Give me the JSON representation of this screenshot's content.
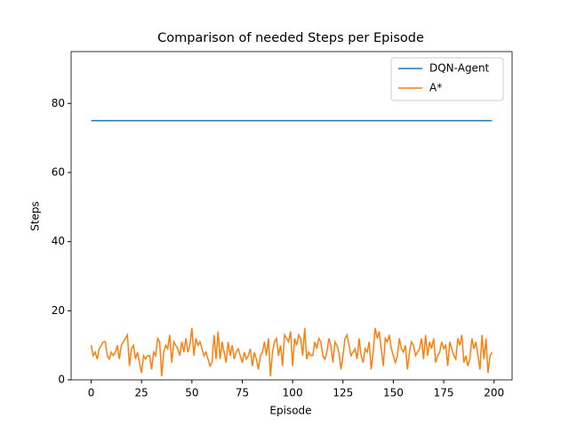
{
  "chart_data": {
    "type": "line",
    "title": "Comparison of needed Steps per Episode",
    "x_label": "Episode",
    "y_label": "Steps",
    "x": [
      0,
      1,
      2,
      3,
      4,
      5,
      6,
      7,
      8,
      9,
      10,
      11,
      12,
      13,
      14,
      15,
      16,
      17,
      18,
      19,
      20,
      21,
      22,
      23,
      24,
      25,
      26,
      27,
      28,
      29,
      30,
      31,
      32,
      33,
      34,
      35,
      36,
      37,
      38,
      39,
      40,
      41,
      42,
      43,
      44,
      45,
      46,
      47,
      48,
      49,
      50,
      51,
      52,
      53,
      54,
      55,
      56,
      57,
      58,
      59,
      60,
      61,
      62,
      63,
      64,
      65,
      66,
      67,
      68,
      69,
      70,
      71,
      72,
      73,
      74,
      75,
      76,
      77,
      78,
      79,
      80,
      81,
      82,
      83,
      84,
      85,
      86,
      87,
      88,
      89,
      90,
      91,
      92,
      93,
      94,
      95,
      96,
      97,
      98,
      99,
      100,
      101,
      102,
      103,
      104,
      105,
      106,
      107,
      108,
      109,
      110,
      111,
      112,
      113,
      114,
      115,
      116,
      117,
      118,
      119,
      120,
      121,
      122,
      123,
      124,
      125,
      126,
      127,
      128,
      129,
      130,
      131,
      132,
      133,
      134,
      135,
      136,
      137,
      138,
      139,
      140,
      141,
      142,
      143,
      144,
      145,
      146,
      147,
      148,
      149,
      150,
      151,
      152,
      153,
      154,
      155,
      156,
      157,
      158,
      159,
      160,
      161,
      162,
      163,
      164,
      165,
      166,
      167,
      168,
      169,
      170,
      171,
      172,
      173,
      174,
      175,
      176,
      177,
      178,
      179,
      180,
      181,
      182,
      183,
      184,
      185,
      186,
      187,
      188,
      189,
      190,
      191,
      192,
      193,
      194,
      195,
      196,
      197,
      198,
      199
    ],
    "series": [
      {
        "name": "DQN-Agent",
        "color": "#1f77b4",
        "values": [
          75,
          75,
          75,
          75,
          75,
          75,
          75,
          75,
          75,
          75,
          75,
          75,
          75,
          75,
          75,
          75,
          75,
          75,
          75,
          75,
          75,
          75,
          75,
          75,
          75,
          75,
          75,
          75,
          75,
          75,
          75,
          75,
          75,
          75,
          75,
          75,
          75,
          75,
          75,
          75,
          75,
          75,
          75,
          75,
          75,
          75,
          75,
          75,
          75,
          75,
          75,
          75,
          75,
          75,
          75,
          75,
          75,
          75,
          75,
          75,
          75,
          75,
          75,
          75,
          75,
          75,
          75,
          75,
          75,
          75,
          75,
          75,
          75,
          75,
          75,
          75,
          75,
          75,
          75,
          75,
          75,
          75,
          75,
          75,
          75,
          75,
          75,
          75,
          75,
          75,
          75,
          75,
          75,
          75,
          75,
          75,
          75,
          75,
          75,
          75,
          75,
          75,
          75,
          75,
          75,
          75,
          75,
          75,
          75,
          75,
          75,
          75,
          75,
          75,
          75,
          75,
          75,
          75,
          75,
          75,
          75,
          75,
          75,
          75,
          75,
          75,
          75,
          75,
          75,
          75,
          75,
          75,
          75,
          75,
          75,
          75,
          75,
          75,
          75,
          75,
          75,
          75,
          75,
          75,
          75,
          75,
          75,
          75,
          75,
          75,
          75,
          75,
          75,
          75,
          75,
          75,
          75,
          75,
          75,
          75,
          75,
          75,
          75,
          75,
          75,
          75,
          75,
          75,
          75,
          75,
          75,
          75,
          75,
          75,
          75,
          75,
          75,
          75,
          75,
          75,
          75,
          75,
          75,
          75,
          75,
          75,
          75,
          75,
          75,
          75,
          75,
          75,
          75,
          75,
          75,
          75,
          75,
          75,
          75,
          75
        ]
      },
      {
        "name": "A*",
        "color": "#ff7f0e",
        "values": [
          10,
          7,
          8,
          6,
          9,
          10,
          11,
          11,
          7,
          6,
          8,
          7,
          8,
          10,
          6,
          10,
          11,
          12,
          13,
          4,
          9,
          10,
          6,
          8,
          5,
          2,
          7,
          6,
          7,
          7,
          3,
          8,
          7,
          12,
          11,
          1,
          8,
          10,
          9,
          13,
          5,
          11,
          10,
          9,
          7,
          11,
          8,
          12,
          8,
          10,
          15,
          7,
          12,
          10,
          11,
          9,
          7,
          8,
          6,
          4,
          5,
          13,
          6,
          14,
          6,
          11,
          8,
          5,
          11,
          7,
          10,
          6,
          8,
          9,
          7,
          5,
          8,
          6,
          7,
          9,
          4,
          8,
          6,
          3,
          7,
          8,
          11,
          7,
          12,
          1,
          8,
          11,
          12,
          7,
          10,
          4,
          13,
          12,
          11,
          14,
          4,
          12,
          10,
          13,
          12,
          7,
          15,
          6,
          8,
          7,
          7,
          11,
          9,
          12,
          11,
          7,
          6,
          8,
          12,
          10,
          5,
          11,
          10,
          8,
          3,
          7,
          12,
          13,
          10,
          7,
          8,
          9,
          6,
          12,
          7,
          5,
          9,
          8,
          11,
          3,
          8,
          15,
          12,
          14,
          9,
          4,
          12,
          11,
          13,
          9,
          7,
          5,
          7,
          12,
          9,
          8,
          10,
          3,
          8,
          11,
          10,
          7,
          8,
          9,
          12,
          6,
          13,
          7,
          11,
          9,
          12,
          5,
          7,
          8,
          11,
          9,
          10,
          4,
          11,
          9,
          7,
          6,
          12,
          10,
          13,
          5,
          7,
          4,
          6,
          12,
          9,
          11,
          7,
          3,
          13,
          6,
          12,
          2,
          7,
          8
        ]
      }
    ],
    "xlim": [
      -9.95,
      208.95
    ],
    "xticks": [
      0,
      25,
      50,
      75,
      100,
      125,
      150,
      175,
      200
    ],
    "ylim": [
      0,
      95
    ],
    "yticks": [
      0,
      20,
      40,
      60,
      80
    ],
    "legend": "upper right"
  }
}
